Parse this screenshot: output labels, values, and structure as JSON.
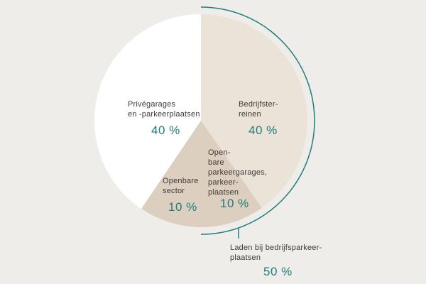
{
  "chart_data": {
    "type": "pie",
    "colors": {
      "background": "#efedea",
      "prive": "#ffffff",
      "bedrijf": "#ebe3d8",
      "openbaar": "#dccfc0",
      "accent": "#1f7d7a"
    },
    "slices": [
      {
        "id": "bedrijf",
        "label_lines": [
          "Bedrijfster-",
          "reinen"
        ],
        "value": 40,
        "value_label": "40 %"
      },
      {
        "id": "openbare-garages",
        "label_lines": [
          "Open-",
          "bare",
          "parkeergarages,",
          "parkeer-",
          "plaatsen"
        ],
        "value": 10,
        "value_label": "10 %"
      },
      {
        "id": "openbare-sector",
        "label_lines": [
          "Openbare",
          "sector"
        ],
        "value": 10,
        "value_label": "10 %"
      },
      {
        "id": "prive",
        "label_lines": [
          "Privégarages",
          "en -parkeerplaatsen"
        ],
        "value": 40,
        "value_label": "40 %"
      }
    ],
    "group": {
      "label_lines": [
        "Laden bij bedrijfsparkeer-",
        "plaatsen"
      ],
      "value": 50,
      "value_label": "50 %"
    }
  }
}
